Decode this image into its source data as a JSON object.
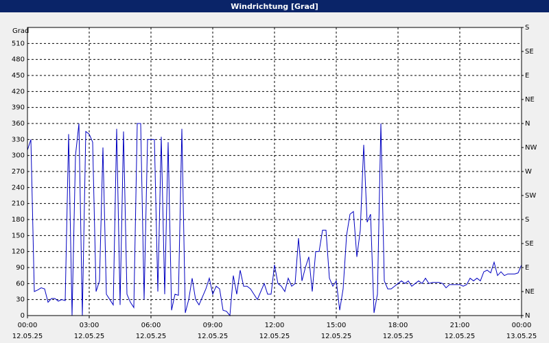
{
  "chart_data": {
    "type": "line",
    "title": "Windrichtung [Grad]",
    "ylabel": "Grad",
    "x": [
      0,
      10,
      20,
      30,
      40,
      50,
      60,
      70,
      80,
      90,
      100,
      110,
      120,
      130,
      140,
      150,
      160,
      170,
      180,
      190,
      200,
      210,
      220,
      230,
      240,
      250,
      260,
      270,
      280,
      290,
      300,
      310,
      320,
      330,
      340,
      350,
      360,
      370,
      380,
      390,
      400,
      410,
      420,
      430,
      440,
      450,
      460,
      470,
      480,
      490,
      500,
      510,
      520,
      530,
      540,
      550,
      560,
      570,
      580,
      590,
      600,
      610,
      620,
      630,
      640,
      650,
      660,
      670,
      680,
      690,
      700,
      710,
      720,
      730,
      740,
      750,
      760,
      770,
      780,
      790,
      800,
      810,
      820,
      830,
      840,
      850,
      860,
      870,
      880,
      890,
      900,
      910,
      920,
      930,
      940,
      950,
      960,
      970,
      980,
      990,
      1000,
      1010,
      1020,
      1030,
      1040,
      1050,
      1060,
      1070,
      1080,
      1090,
      1100,
      1110,
      1120,
      1130,
      1140,
      1150,
      1160,
      1170,
      1180,
      1190,
      1200,
      1210,
      1220,
      1230,
      1240,
      1250,
      1260,
      1270,
      1280,
      1290,
      1300,
      1310,
      1320,
      1330,
      1340,
      1350,
      1360,
      1370,
      1380,
      1390,
      1400,
      1410,
      1420,
      1430,
      1440
    ],
    "series": [
      {
        "color": "#0000c0",
        "values": [
          310,
          330,
          45,
          48,
          52,
          50,
          25,
          32,
          32,
          27,
          30,
          28,
          340,
          0,
          300,
          360,
          0,
          345,
          340,
          325,
          45,
          65,
          315,
          40,
          30,
          20,
          350,
          20,
          345,
          40,
          25,
          15,
          360,
          360,
          30,
          330,
          330,
          330,
          45,
          335,
          40,
          325,
          10,
          40,
          38,
          350,
          5,
          30,
          70,
          30,
          20,
          35,
          50,
          70,
          40,
          55,
          50,
          10,
          8,
          0,
          75,
          40,
          85,
          55,
          55,
          50,
          40,
          30,
          45,
          60,
          40,
          40,
          95,
          60,
          55,
          45,
          70,
          55,
          60,
          145,
          65,
          90,
          110,
          45,
          120,
          120,
          160,
          160,
          70,
          55,
          65,
          10,
          50,
          150,
          190,
          195,
          110,
          160,
          320,
          175,
          190,
          5,
          40,
          360,
          65,
          50,
          50,
          55,
          60,
          65,
          60,
          65,
          55,
          60,
          65,
          60,
          70,
          60,
          62,
          62,
          62,
          60,
          52,
          58,
          58,
          58,
          58,
          55,
          58,
          70,
          65,
          70,
          65,
          82,
          85,
          80,
          100,
          75,
          82,
          75,
          78,
          78,
          78,
          80,
          95
        ]
      }
    ],
    "xlim": [
      0,
      1440
    ],
    "xticks": [
      {
        "value": 0,
        "label": "00:00",
        "date": "12.05.25"
      },
      {
        "value": 180,
        "label": "03:00",
        "date": "12.05.25"
      },
      {
        "value": 360,
        "label": "06:00",
        "date": "12.05.25"
      },
      {
        "value": 540,
        "label": "09:00",
        "date": "12.05.25"
      },
      {
        "value": 720,
        "label": "12:00",
        "date": "12.05.25"
      },
      {
        "value": 900,
        "label": "15:00",
        "date": "12.05.25"
      },
      {
        "value": 1080,
        "label": "18:00",
        "date": "12.05.25"
      },
      {
        "value": 1260,
        "label": "21:00",
        "date": "12.05.25"
      },
      {
        "value": 1440,
        "label": "00:00",
        "date": "13.05.25"
      }
    ],
    "ylim": [
      0,
      540
    ],
    "yticks": [
      0,
      30,
      60,
      90,
      120,
      150,
      180,
      210,
      240,
      270,
      300,
      330,
      360,
      390,
      420,
      450,
      480,
      510
    ],
    "y2lim": [
      0,
      540
    ],
    "y2ticks": [
      {
        "value": 0,
        "label": "N"
      },
      {
        "value": 45,
        "label": "NE"
      },
      {
        "value": 90,
        "label": "E"
      },
      {
        "value": 135,
        "label": "SE"
      },
      {
        "value": 180,
        "label": "S"
      },
      {
        "value": 225,
        "label": "SW"
      },
      {
        "value": 270,
        "label": "W"
      },
      {
        "value": 315,
        "label": "NW"
      },
      {
        "value": 360,
        "label": "N"
      },
      {
        "value": 405,
        "label": "NE"
      },
      {
        "value": 450,
        "label": "E"
      },
      {
        "value": 495,
        "label": "SE"
      },
      {
        "value": 540,
        "label": "S"
      }
    ],
    "grid": true
  }
}
